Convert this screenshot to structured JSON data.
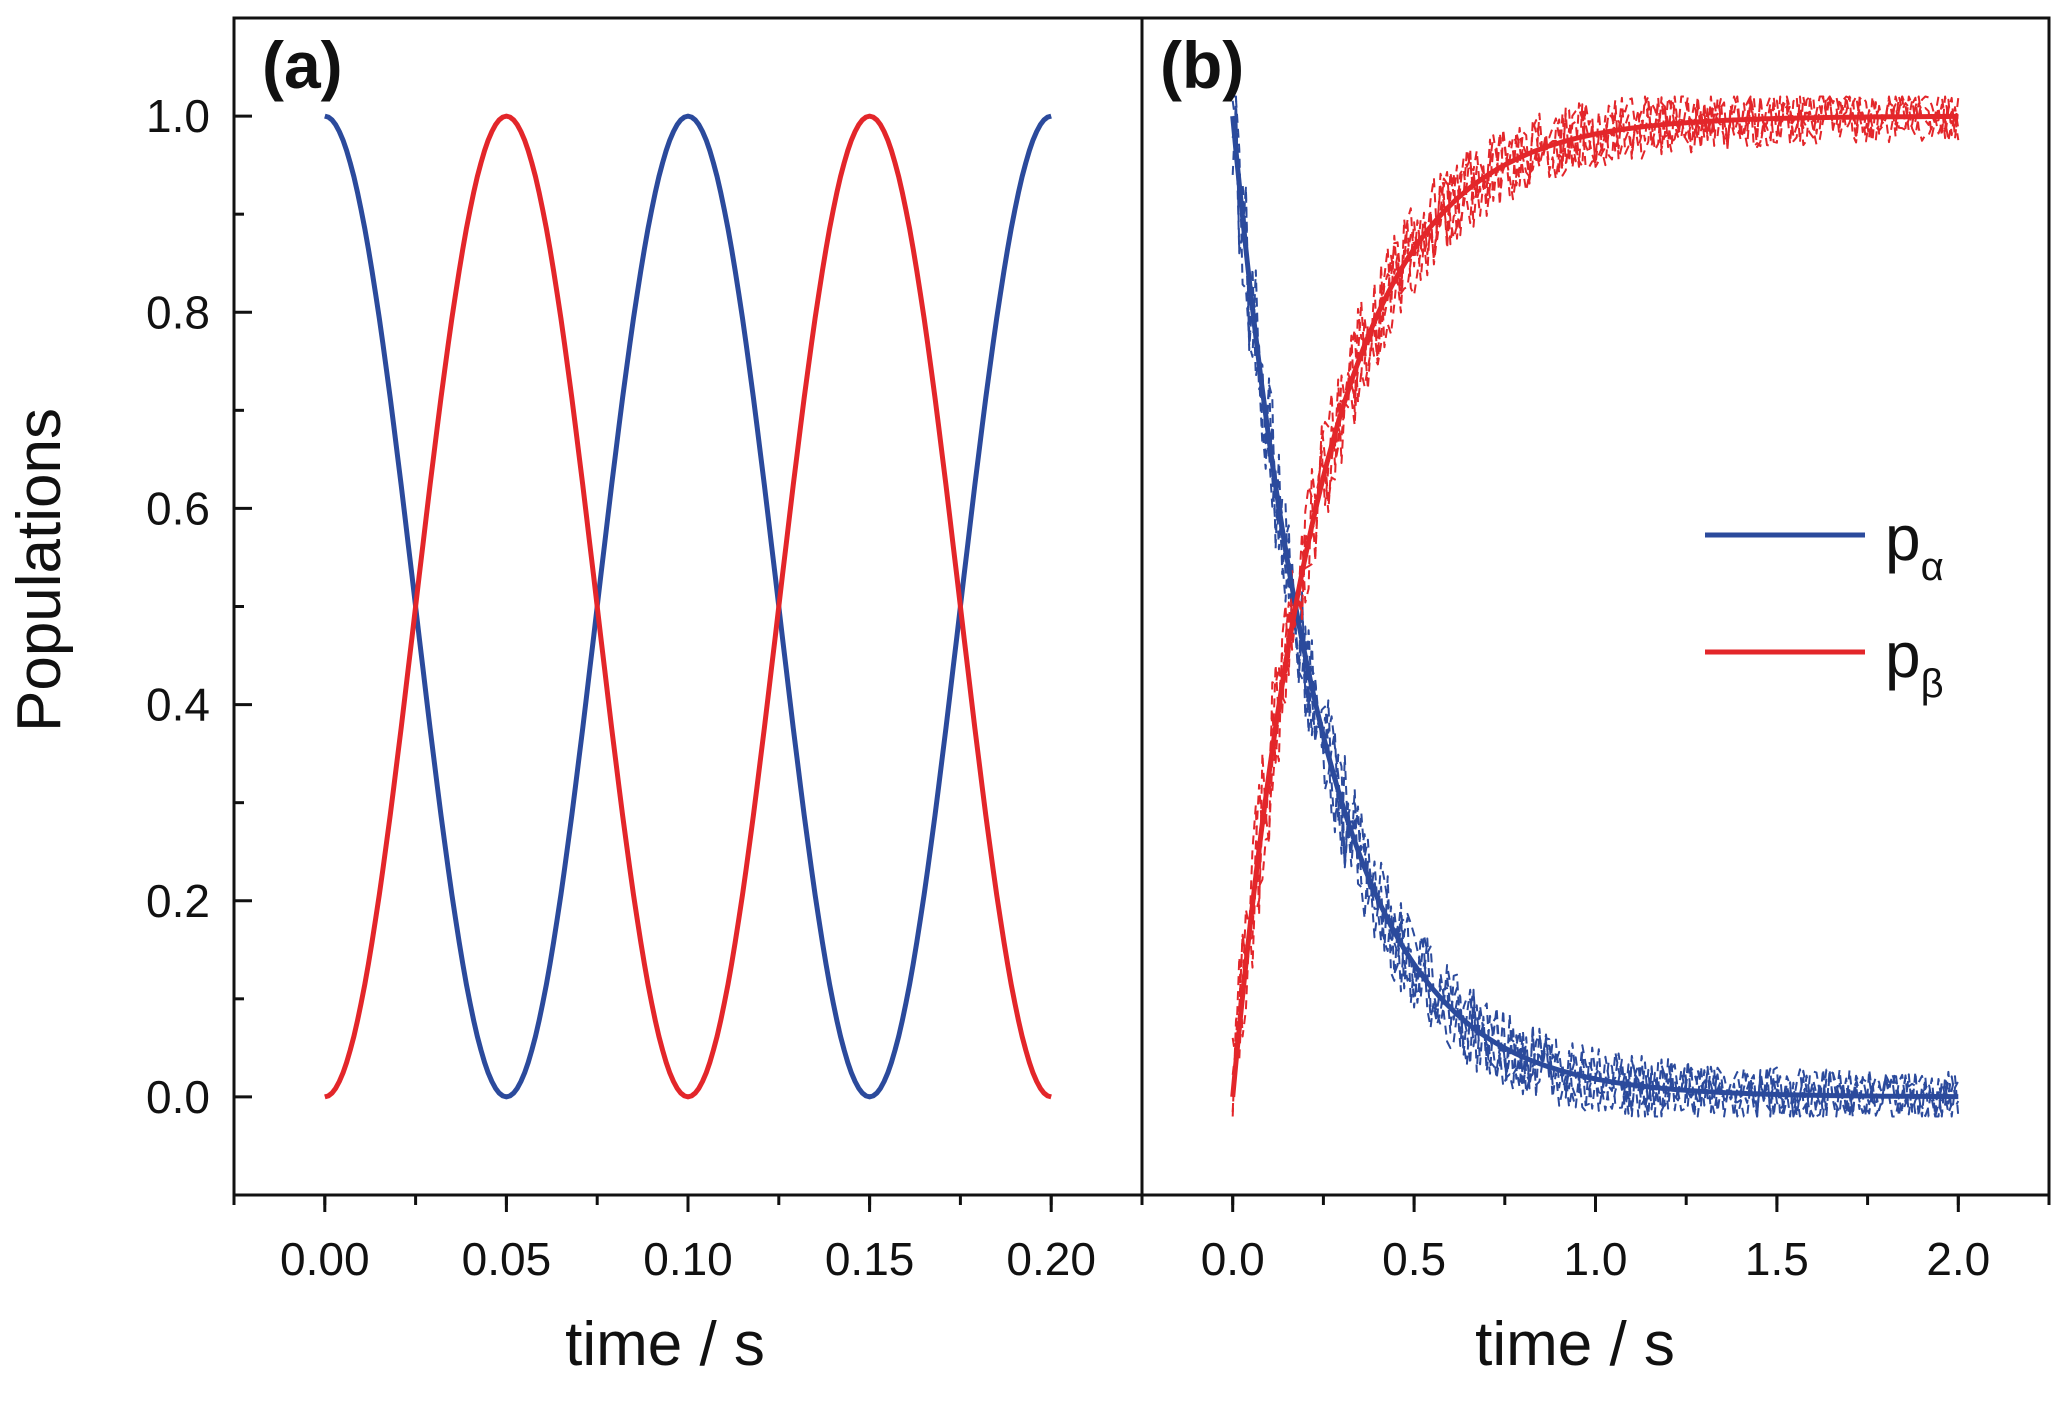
{
  "figure": {
    "ylabel": "Populations",
    "colors": {
      "p_alpha": "#2b4a9c",
      "p_beta": "#e3262a",
      "axis": "#111111"
    }
  },
  "chart_data": [
    {
      "panel": "(a)",
      "type": "line",
      "xlabel": "time / s",
      "ylabel": "Populations",
      "xlim": [
        -0.025,
        0.225
      ],
      "ylim": [
        -0.1,
        1.1
      ],
      "xticks": [
        0.0,
        0.05,
        0.1,
        0.15,
        0.2
      ],
      "xtick_labels": [
        "0.00",
        "0.05",
        "0.10",
        "0.15",
        "0.20"
      ],
      "yticks": [
        0.0,
        0.2,
        0.4,
        0.6,
        0.8,
        1.0
      ],
      "ytick_labels": [
        "0.0",
        "0.2",
        "0.4",
        "0.6",
        "0.8",
        "1.0"
      ],
      "series": [
        {
          "name": "pα",
          "color": "#2b4a9c",
          "x": [
            0.0,
            0.005,
            0.01,
            0.015,
            0.02,
            0.025,
            0.03,
            0.035,
            0.04,
            0.045,
            0.05,
            0.055,
            0.06,
            0.065,
            0.07,
            0.075,
            0.08,
            0.085,
            0.09,
            0.095,
            0.1,
            0.105,
            0.11,
            0.115,
            0.12,
            0.125,
            0.13,
            0.135,
            0.14,
            0.145,
            0.15,
            0.155,
            0.16,
            0.165,
            0.17,
            0.175,
            0.18,
            0.185,
            0.19,
            0.195,
            0.2
          ],
          "y": [
            1.0,
            0.976,
            0.905,
            0.794,
            0.655,
            0.5,
            0.345,
            0.206,
            0.095,
            0.024,
            0.0,
            0.024,
            0.095,
            0.206,
            0.345,
            0.5,
            0.655,
            0.794,
            0.905,
            0.976,
            1.0,
            0.976,
            0.905,
            0.794,
            0.655,
            0.5,
            0.345,
            0.206,
            0.095,
            0.024,
            0.0,
            0.024,
            0.095,
            0.206,
            0.345,
            0.5,
            0.655,
            0.794,
            0.905,
            0.976,
            1.0
          ]
        },
        {
          "name": "pβ",
          "color": "#e3262a",
          "x": [
            0.0,
            0.005,
            0.01,
            0.015,
            0.02,
            0.025,
            0.03,
            0.035,
            0.04,
            0.045,
            0.05,
            0.055,
            0.06,
            0.065,
            0.07,
            0.075,
            0.08,
            0.085,
            0.09,
            0.095,
            0.1,
            0.105,
            0.11,
            0.115,
            0.12,
            0.125,
            0.13,
            0.135,
            0.14,
            0.145,
            0.15,
            0.155,
            0.16,
            0.165,
            0.17,
            0.175,
            0.18,
            0.185,
            0.19,
            0.195,
            0.2
          ],
          "y": [
            0.0,
            0.024,
            0.095,
            0.206,
            0.345,
            0.5,
            0.655,
            0.794,
            0.905,
            0.976,
            1.0,
            0.976,
            0.905,
            0.794,
            0.655,
            0.5,
            0.345,
            0.206,
            0.095,
            0.024,
            0.0,
            0.024,
            0.095,
            0.206,
            0.345,
            0.5,
            0.655,
            0.794,
            0.905,
            0.976,
            1.0,
            0.976,
            0.905,
            0.794,
            0.655,
            0.5,
            0.345,
            0.206,
            0.095,
            0.024,
            0.0
          ]
        }
      ]
    },
    {
      "panel": "(b)",
      "type": "line",
      "xlabel": "time / s",
      "xlim": [
        -0.25,
        2.25
      ],
      "ylim": [
        -0.1,
        1.1
      ],
      "xticks": [
        0.0,
        0.5,
        1.0,
        1.5,
        2.0
      ],
      "xtick_labels": [
        "0.0",
        "0.5",
        "1.0",
        "1.5",
        "2.0"
      ],
      "series": [
        {
          "name": "pα",
          "color": "#2b4a9c",
          "style": "solid",
          "x": [
            0.0,
            0.05,
            0.1,
            0.15,
            0.2,
            0.25,
            0.3,
            0.4,
            0.5,
            0.6,
            0.7,
            0.8,
            0.9,
            1.0,
            1.2,
            1.4,
            1.6,
            1.8,
            2.0
          ],
          "y": [
            1.0,
            0.82,
            0.67,
            0.55,
            0.45,
            0.37,
            0.3,
            0.2,
            0.135,
            0.091,
            0.061,
            0.041,
            0.027,
            0.018,
            0.008,
            0.004,
            0.002,
            0.001,
            0.0
          ]
        },
        {
          "name": "pβ",
          "color": "#e3262a",
          "style": "solid",
          "x": [
            0.0,
            0.05,
            0.1,
            0.15,
            0.2,
            0.25,
            0.3,
            0.4,
            0.5,
            0.6,
            0.7,
            0.8,
            0.9,
            1.0,
            1.2,
            1.4,
            1.6,
            1.8,
            2.0
          ],
          "y": [
            0.0,
            0.18,
            0.33,
            0.45,
            0.55,
            0.63,
            0.7,
            0.8,
            0.865,
            0.909,
            0.939,
            0.959,
            0.973,
            0.982,
            0.992,
            0.996,
            0.998,
            0.999,
            1.0
          ]
        },
        {
          "name": "pα simulated",
          "color": "#2b4a9c",
          "style": "dashed",
          "noise_amplitude": 0.04
        },
        {
          "name": "pβ simulated",
          "color": "#e3262a",
          "style": "dashed",
          "noise_amplitude": 0.04
        }
      ],
      "legend": {
        "position": "center-right",
        "entries": [
          {
            "main": "p",
            "sub": "α",
            "color": "#2b4a9c"
          },
          {
            "main": "p",
            "sub": "β",
            "color": "#e3262a"
          }
        ]
      }
    }
  ]
}
